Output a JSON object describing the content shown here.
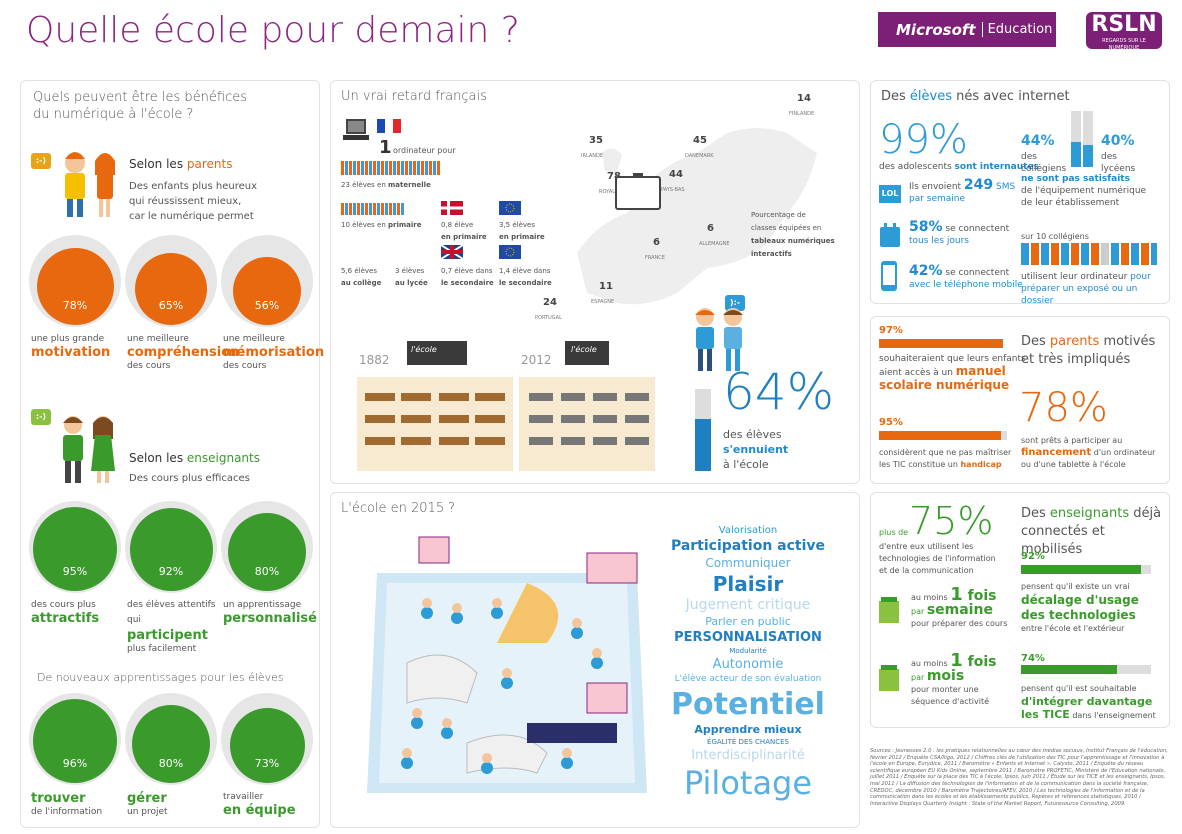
{
  "header": {
    "title": "Quelle école pour demain ?",
    "ms_brand": "Microsoft",
    "ms_sub": "Education",
    "rsln": "RSLN",
    "rsln_sub": "REGARDS SUR LE NUMÉRIQUE"
  },
  "benefits": {
    "title1": "Quels peuvent être les bénéfices",
    "title2": "du numérique à l'école ?",
    "parents_head_pre": "Selon les ",
    "parents_head_hl": "parents",
    "parents_l1": "Des enfants plus heureux",
    "parents_l2": "qui réussissent mieux,",
    "parents_l3": "car le numérique permet",
    "p": [
      {
        "pct": "78%",
        "value": 78,
        "l1": "une plus grande",
        "b": "motivation",
        "l3": ""
      },
      {
        "pct": "65%",
        "value": 65,
        "l1": "une meilleure",
        "b": "compréhension",
        "l3": "des cours"
      },
      {
        "pct": "56%",
        "value": 56,
        "l1": "une meilleure",
        "b": "mémorisation",
        "l3": "des cours"
      }
    ],
    "teachers_head_pre": "Selon les ",
    "teachers_head_hl": "enseignants",
    "teachers_sub": "Des cours plus efficaces",
    "t": [
      {
        "pct": "95%",
        "value": 95,
        "l1": "des cours plus",
        "b": "attractifs",
        "l3": ""
      },
      {
        "pct": "92%",
        "value": 92,
        "l1": "des élèves attentifs",
        "l2a": "qui ",
        "b": "participent",
        "l3": "plus facilement"
      },
      {
        "pct": "80%",
        "value": 80,
        "l1": "un apprentissage",
        "b": "personnalisé",
        "l3": ""
      }
    ],
    "new_title": "De nouveaux apprentissages pour les élèves",
    "n": [
      {
        "pct": "96%",
        "value": 96,
        "b": "trouver",
        "l3": "de l'information"
      },
      {
        "pct": "80%",
        "value": 80,
        "b": "gérer",
        "l3": "un projet"
      },
      {
        "pct": "73%",
        "value": 73,
        "l1": "travailler",
        "b": "en équipe"
      }
    ],
    "bubble": ":-)"
  },
  "retard": {
    "title": "Un vrai retard français",
    "r1_num": "1",
    "r1_txt": "ordinateur pour",
    "r2": "23 élèves en ",
    "r2b": "maternelle",
    "a": "10 élèves en ",
    "ab": "primaire",
    "b": "0,8 élève",
    "bb": "en primaire",
    "c": "3,5 élèves",
    "cb": "en primaire",
    "d": "5,6 élèves",
    "db": "au collège",
    "e": "3 élèves",
    "eb": "au lycée",
    "f": "0,7 élève dans",
    "fb": "le secondaire",
    "g": "1,4 élève dans",
    "gb": "le secondaire",
    "map": [
      {
        "n": "14",
        "c": "FINLANDE"
      },
      {
        "n": "35",
        "c": "IRLANDE"
      },
      {
        "n": "45",
        "c": "DANEMARK"
      },
      {
        "n": "78",
        "c": "ROYAUME-UNI"
      },
      {
        "n": "44",
        "c": "PAYS-BAS"
      },
      {
        "n": "6",
        "c": "ALLEMAGNE"
      },
      {
        "n": "6",
        "c": "FRANCE"
      },
      {
        "n": "11",
        "c": "ESPAGNE"
      },
      {
        "n": "24",
        "c": "PORTUGAL"
      }
    ],
    "legend1": "Pourcentage de",
    "legend2": "classes équipées en",
    "legend3": "tableaux numériques",
    "legend4": "interactifs",
    "y1882": "1882",
    "y2012": "2012",
    "ecole": "l'école",
    "pct": "64%",
    "value": 64,
    "l1": "des élèves",
    "l2": "s'ennuient",
    "l3": "à l'école",
    "bubble": "):-"
  },
  "eleves": {
    "title_pre": "Des ",
    "title_hl": "élèves",
    "title_post": " nés avec internet",
    "p99": "99%",
    "p99_l1": "des adolescents ",
    "p99_l1b": "sont internautes",
    "p44": "44%",
    "p44_l": "des",
    "p44_l2": "collégiens",
    "p40": "40%",
    "p40_l": "des",
    "p40_l2": "lycéens",
    "ns": "ne sont pas satisfaits",
    "ns2": "de l'équipement numérique",
    "ns3": "de leur établissement",
    "sms_pre": "Ils envoient ",
    "sms_n": "249",
    "sms_u": " SMS",
    "sms_l2": "par semaine",
    "lol": "LOL",
    "p58": "58%",
    "p58_l": " se connectent",
    "p58_l2": "tous les jours",
    "p42": "42%",
    "p42_l": " se connectent",
    "p42_l2": "avec le téléphone mobile",
    "ten": "sur 10 collégiens",
    "ten_l2": "utilisent leur ordinateur ",
    "ten_l2b": "pour",
    "ten_l3": "préparer un exposé ou un dossier"
  },
  "parents": {
    "title_pre": "Des ",
    "title_hl": "parents",
    "title_post": " motivés",
    "title2": "et très impliqués",
    "p97": "97%",
    "v97": 97,
    "p97_l1": "souhaiteraient que leurs enfants",
    "p97_l2": "aient accès à un ",
    "p97_b1": "manuel",
    "p97_b2": "scolaire numérique",
    "p95": "95%",
    "v95": 95,
    "p95_l1": "considèrent que ne pas maîtriser",
    "p95_l2": "les TIC constitue un ",
    "p95_b": "handicap",
    "p78": "78%",
    "p78_l1": "sont prêts à participer au",
    "p78_b": "financement",
    "p78_l2": " d'un ordinateur",
    "p78_l3": "ou d'une tablette à l'école"
  },
  "ecole2015": {
    "title": "L'école en 2015 ?",
    "words": [
      {
        "t": "Valorisation",
        "s": 10,
        "c": "#2d9bd6",
        "w": "normal"
      },
      {
        "t": "Participation active",
        "s": 14,
        "c": "#1f7fc0",
        "w": "bold"
      },
      {
        "t": "Communiquer",
        "s": 12,
        "c": "#5ab0e0",
        "w": "normal"
      },
      {
        "t": "Plaisir",
        "s": 20,
        "c": "#1f7fc0",
        "w": "bold"
      },
      {
        "t": "Jugement critique",
        "s": 14,
        "c": "#b8d8ee",
        "w": "normal"
      },
      {
        "t": "Parler en public",
        "s": 11,
        "c": "#5ab0e0",
        "w": "normal"
      },
      {
        "t": "PERSONNALISATION",
        "s": 13,
        "c": "#1f7fc0",
        "w": "bold"
      },
      {
        "t": "Modularité",
        "s": 7,
        "c": "#1f7fc0",
        "w": "normal"
      },
      {
        "t": "Autonomie",
        "s": 13,
        "c": "#5ab0e0",
        "w": "normal"
      },
      {
        "t": "L'élève acteur de son évaluation",
        "s": 9,
        "c": "#5ab0e0",
        "w": "normal"
      },
      {
        "t": "Potentiel",
        "s": 30,
        "c": "#5ab0e0",
        "w": "bold"
      },
      {
        "t": "Apprendre mieux",
        "s": 11,
        "c": "#1f7fc0",
        "w": "bold"
      },
      {
        "t": "ÉGALITÉ DES CHANCES",
        "s": 7,
        "c": "#1f7fc0",
        "w": "normal"
      },
      {
        "t": "Interdisciplinarité",
        "s": 13,
        "c": "#b8d8ee",
        "w": "normal"
      },
      {
        "t": "Pilotage",
        "s": 32,
        "c": "#5ab0e0",
        "w": "normal"
      }
    ]
  },
  "enseignants": {
    "p75_pre": "plus de",
    "p75": "75%",
    "p75_l1": "d'entre eux utilisent les",
    "p75_l2": "technologies de l'information",
    "p75_l3": "et de la communication",
    "w_pre": "au moins ",
    "w_n": "1",
    "w_fois": " fois",
    "w_par": "par ",
    "w_sem": "semaine",
    "w_l": "pour préparer des cours",
    "m_pre": "au moins ",
    "m_n": "1",
    "m_fois": " fois",
    "m_par": "par ",
    "m_mois": "mois",
    "m_l1": "pour monter une",
    "m_l2": "séquence d'activité",
    "title_pre": "Des ",
    "title_hl": "enseignants",
    "title_post": " déjà",
    "title2": "connectés et mobilisés",
    "p92": "92%",
    "v92": 92,
    "p92_l1": "pensent qu'il existe un vrai",
    "p92_b1": "décalage d'usage",
    "p92_b2": "des technologies",
    "p92_l2": "entre l'école et l'extérieur",
    "p74": "74%",
    "v74": 74,
    "p74_l1": "pensent qu'il est souhaitable",
    "p74_b1": "d'intégrer davantage",
    "p74_b2": "les TICE",
    "p74_l2": " dans l'enseignement"
  },
  "sources": "Sources : Jeunesses 2.0 : les pratiques relationnelles au cœur des médias sociaux, Institut Français de l'éducation, février 2012 / Enquête CSA/Iligo, 2012 / Chiffres clés de l'utilisation des TIC pour l'apprentissage et l'innovation à l'école en Europe, Eurydice, 2011 / Baromètre « Enfants et Internet », Calysto, 2011 / Enquête du réseau scientifique européen EU Kids Online, septembre 2011 / Baromètre PROFETIC, Ministère de l'Education nationale, juillet 2011 / Enquête sur la place des TIC à l'école, Ipsos, juin 2011 / Étude sur les TICE et les enseignants, Ipsos, mai 2011 / La diffusion des technologies de l'information et de la communication dans la société française, CREDOC, décembre 2010 / Baromètre Trajectoires/AFEV, 2010 / Les technologies de l'information et de la communication dans les écoles et les établissements publics, Repères et références statistiques, 2010 / Interactive Displays Quarterly Insight : State of the Market Report, Futuresource Consulting, 2009."
}
